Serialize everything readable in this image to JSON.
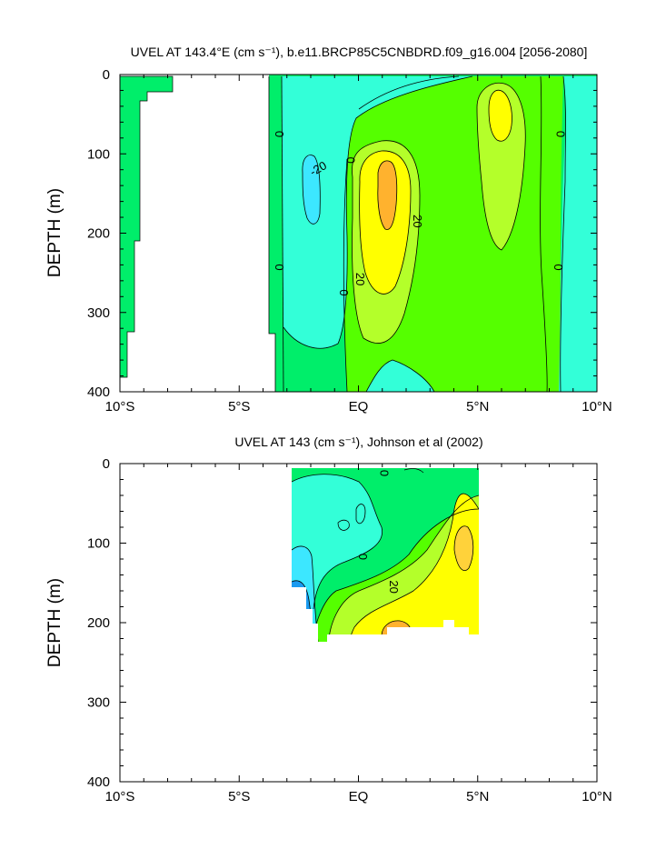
{
  "chart_data": [
    {
      "type": "contour",
      "title": "UVEL AT 143.4°E (cm s⁻¹), b.e11.BRCP85C5CNBDRD.f09_g16.004 [2056-2080]",
      "ylabel": "DEPTH (m)",
      "xlabel": "",
      "x_ticklabels": [
        "10°S",
        "5°S",
        "EQ",
        "5°N",
        "10°N"
      ],
      "x_tickvalues": [
        -10,
        -5,
        0,
        5,
        10
      ],
      "y_ticklabels": [
        "0",
        "100",
        "200",
        "300",
        "400"
      ],
      "y_tickvalues": [
        0,
        100,
        200,
        300,
        400
      ],
      "xlim": [
        -10,
        10
      ],
      "ylim": [
        400,
        0
      ],
      "contour_interval": 10,
      "contour_labels": [
        {
          "text": "0",
          "lat": -3.3,
          "depth": 75
        },
        {
          "text": "-20",
          "lat": -1.7,
          "depth": 118
        },
        {
          "text": "0",
          "lat": -0.3,
          "depth": 108
        },
        {
          "text": "20",
          "lat": 2.5,
          "depth": 185
        },
        {
          "text": "0",
          "lat": -3.3,
          "depth": 243
        },
        {
          "text": "20",
          "lat": 0.1,
          "depth": 258
        },
        {
          "text": "0",
          "lat": -0.6,
          "depth": 275
        },
        {
          "text": "0",
          "lat": 8.5,
          "depth": 75
        },
        {
          "text": "0",
          "lat": 8.4,
          "depth": 243
        }
      ],
      "color_levels": [
        {
          "range": "< -30",
          "color": "#1a9af0"
        },
        {
          "range": "-30 to -20",
          "color": "#3ce7ff"
        },
        {
          "range": "-20 to -10",
          "color": "#33ffd8"
        },
        {
          "range": "-10 to 0",
          "color": "#00ee6a"
        },
        {
          "range": "0 to 10",
          "color": "#55ff00"
        },
        {
          "range": "10 to 20",
          "color": "#b4ff2a"
        },
        {
          "range": "20 to 30",
          "color": "#ffff00"
        },
        {
          "range": "> 30",
          "color": "#ffb22e"
        }
      ],
      "features": [
        {
          "kind": "eastward_core",
          "lat": 1.0,
          "depth": 190,
          "max_level": "> 30"
        },
        {
          "kind": "westward_core",
          "lat": -2.0,
          "depth": 170,
          "max_level": "-30 to -20"
        },
        {
          "kind": "surface_core",
          "lat": 5.9,
          "depth": 70,
          "max_level": "20 to 30"
        }
      ]
    },
    {
      "type": "contour",
      "title": "UVEL AT 143 (cm s⁻¹), Johnson et al (2002)",
      "ylabel": "DEPTH (m)",
      "xlabel": "",
      "x_ticklabels": [
        "10°S",
        "5°S",
        "EQ",
        "5°N",
        "10°N"
      ],
      "x_tickvalues": [
        -10,
        -5,
        0,
        5,
        10
      ],
      "y_ticklabels": [
        "0",
        "100",
        "200",
        "300",
        "400"
      ],
      "y_tickvalues": [
        0,
        100,
        200,
        300,
        400
      ],
      "xlim": [
        -10,
        10
      ],
      "ylim": [
        400,
        0
      ],
      "data_extent": {
        "lat": [
          -2.8,
          5.0
        ],
        "depth": [
          7,
          225
        ]
      },
      "contour_labels": [
        {
          "text": "0",
          "lat": 1.1,
          "depth": 12
        },
        {
          "text": "0",
          "lat": 0.2,
          "depth": 117
        },
        {
          "text": "20",
          "lat": 1.5,
          "depth": 155
        }
      ],
      "features": [
        {
          "kind": "eastward_core",
          "lat": 1.2,
          "depth": 205,
          "max_level": "> 30"
        },
        {
          "kind": "westward_core",
          "lat": -2.1,
          "depth": 185,
          "max_level": "< -30"
        },
        {
          "kind": "eastward_core",
          "lat": 4.5,
          "depth": 100,
          "max_level": "> 30"
        }
      ]
    }
  ]
}
